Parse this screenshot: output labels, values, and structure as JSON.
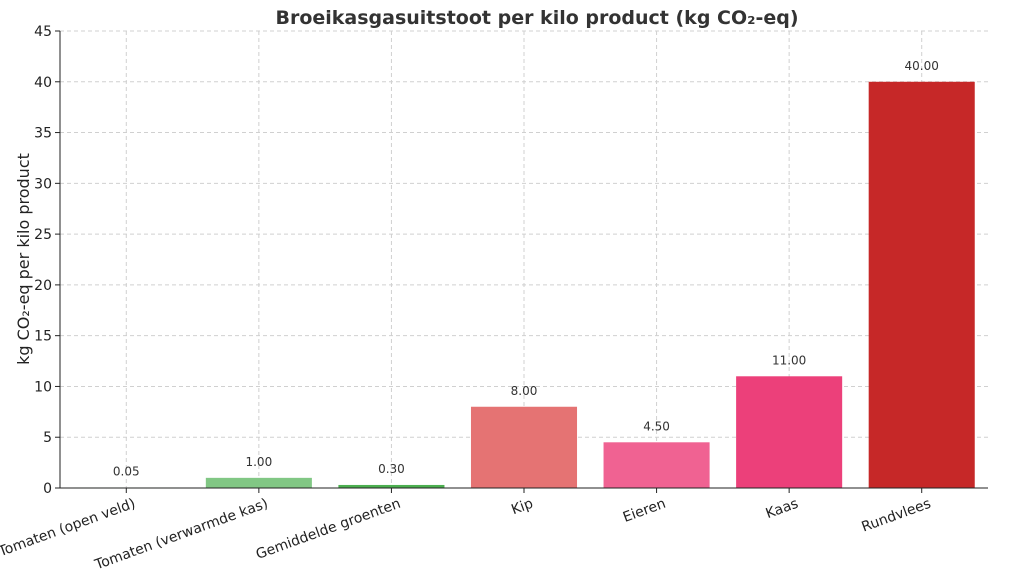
{
  "chart_data": {
    "type": "bar",
    "title": "Broeikasgasuitstoot per kilo product (kg CO₂-eq)",
    "xlabel": "",
    "ylabel": "kg CO₂-eq per kilo product",
    "ylim": [
      0,
      45
    ],
    "yticks": [
      0,
      5,
      10,
      15,
      20,
      25,
      30,
      35,
      40,
      45
    ],
    "grid": true,
    "categories": [
      "Tomaten (open veld)",
      "Tomaten (verwarmde kas)",
      "Gemiddelde groenten",
      "Kip",
      "Eieren",
      "Kaas",
      "Rundvlees"
    ],
    "values": [
      0.05,
      1.0,
      0.3,
      8.0,
      4.5,
      11.0,
      40.0
    ],
    "value_labels": [
      "0.05",
      "1.00",
      "0.30",
      "8.00",
      "4.50",
      "11.00",
      "40.00"
    ],
    "colors": [
      "#2e7d32",
      "#81c784",
      "#4caf50",
      "#e57373",
      "#f06292",
      "#ec407a",
      "#c62828"
    ]
  }
}
